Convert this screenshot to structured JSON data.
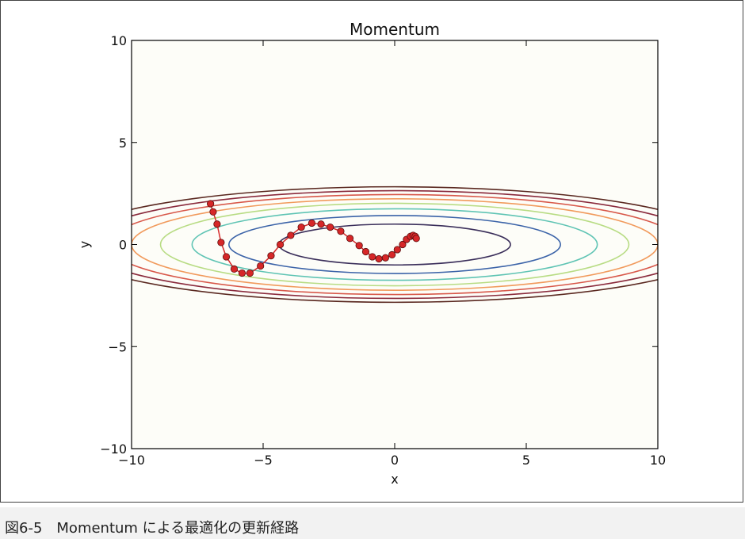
{
  "caption": "図6-5　Momentum による最適化の更新経路",
  "chart_data": {
    "type": "line",
    "title": "Momentum",
    "xlabel": "x",
    "ylabel": "y",
    "xlim": [
      -10,
      10
    ],
    "ylim": [
      -10,
      10
    ],
    "xticks": [
      -10,
      -5,
      0,
      5,
      10
    ],
    "yticks": [
      -10,
      -5,
      0,
      5,
      10
    ],
    "xtick_labels": [
      "−10",
      "−5",
      "0",
      "5",
      "10"
    ],
    "ytick_labels": [
      "−10",
      "−5",
      "0",
      "5",
      "10"
    ],
    "grid": false,
    "contours": [
      {
        "a": 4.4,
        "b": 1.0,
        "color": "#3a2e5a"
      },
      {
        "a": 6.3,
        "b": 1.42,
        "color": "#3b63a8"
      },
      {
        "a": 7.7,
        "b": 1.75,
        "color": "#5fc4b4"
      },
      {
        "a": 8.9,
        "b": 2.02,
        "color": "#b8dc84"
      },
      {
        "a": 10.0,
        "b": 2.24,
        "color": "#f19a5c"
      },
      {
        "a": 10.9,
        "b": 2.45,
        "color": "#d8584a"
      },
      {
        "a": 11.8,
        "b": 2.64,
        "color": "#8a2a3c"
      },
      {
        "a": 12.6,
        "b": 2.83,
        "color": "#5a2820"
      }
    ],
    "series": [
      {
        "color": "#d62728",
        "x": [
          -7.0,
          -6.9,
          -6.75,
          -6.6,
          -6.4,
          -6.1,
          -5.8,
          -5.5,
          -5.1,
          -4.7,
          -4.35,
          -3.95,
          -3.55,
          -3.15,
          -2.8,
          -2.45,
          -2.05,
          -1.7,
          -1.35,
          -1.1,
          -0.85,
          -0.6,
          -0.35,
          -0.1,
          0.1,
          0.3,
          0.45,
          0.6,
          0.7,
          0.78,
          0.82
        ],
        "y": [
          2.0,
          1.6,
          1.0,
          0.1,
          -0.6,
          -1.2,
          -1.4,
          -1.4,
          -1.05,
          -0.55,
          0.0,
          0.45,
          0.85,
          1.05,
          1.0,
          0.85,
          0.65,
          0.3,
          -0.05,
          -0.35,
          -0.6,
          -0.7,
          -0.65,
          -0.5,
          -0.25,
          0.0,
          0.25,
          0.4,
          0.45,
          0.4,
          0.3
        ]
      }
    ]
  }
}
